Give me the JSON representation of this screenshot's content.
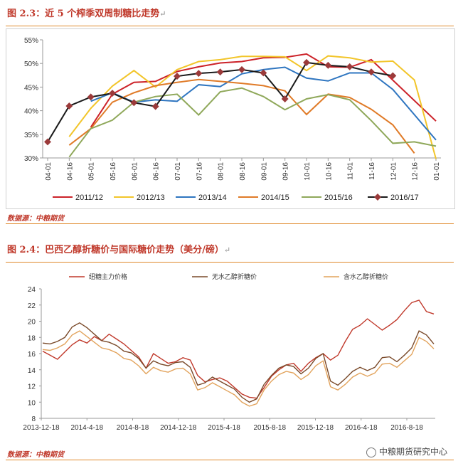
{
  "figure1": {
    "title": "图 2.3：近 5 个榨季双周制糖比走势",
    "source": "数据源：中粮期货"
  },
  "figure2": {
    "title": "图 2.4：巴西乙醇折糖价与国际糖价走势（美分/磅）",
    "source": "数据源：中粮期货"
  },
  "watermark": "中粮期货研究中心",
  "chart_data": [
    {
      "type": "line",
      "title": "近 5 个榨季双周制糖比走势",
      "categories": [
        "04-01",
        "04-16",
        "05-01",
        "05-16",
        "06-01",
        "06-16",
        "07-01",
        "07-16",
        "08-01",
        "08-16",
        "09-01",
        "09-16",
        "10-01",
        "10-16",
        "11-01",
        "11-16",
        "12-01",
        "12-16",
        "01-01"
      ],
      "yticks": [
        "30%",
        "35%",
        "40%",
        "45%",
        "50%",
        "55%"
      ],
      "ylim": [
        30,
        55
      ],
      "legend_position": "bottom",
      "series": [
        {
          "name": "2011/12",
          "color": "#cc2229",
          "values": [
            null,
            null,
            36.5,
            43.5,
            46.0,
            46.2,
            48.3,
            49.3,
            50.1,
            50.4,
            51.2,
            51.3,
            52.0,
            49.3,
            49.2,
            50.8,
            null,
            null,
            37.8
          ]
        },
        {
          "name": "2012/13",
          "color": "#f2c52a",
          "values": [
            null,
            34.5,
            40.5,
            45.2,
            48.5,
            45.0,
            48.7,
            50.4,
            50.8,
            51.5,
            51.5,
            51.4,
            48.5,
            51.6,
            51.2,
            50.3,
            50.5,
            46.5,
            29.8
          ]
        },
        {
          "name": "2013/14",
          "color": "#2e75c0",
          "values": [
            null,
            null,
            42.0,
            43.8,
            41.8,
            42.3,
            42.0,
            45.5,
            45.1,
            47.8,
            48.7,
            49.2,
            46.9,
            46.3,
            48.0,
            48.0,
            44.5,
            null,
            33.8
          ]
        },
        {
          "name": "2014/15",
          "color": "#e07b28",
          "values": [
            null,
            32.7,
            36.2,
            41.8,
            43.8,
            45.3,
            46.0,
            46.6,
            46.2,
            45.8,
            45.3,
            44.2,
            39.2,
            43.5,
            42.8,
            40.3,
            37.0,
            31.0,
            null
          ]
        },
        {
          "name": "2015/16",
          "color": "#8fa85a",
          "values": [
            null,
            30.2,
            36.2,
            38.0,
            41.8,
            43.0,
            43.5,
            39.1,
            44.0,
            44.8,
            43.0,
            40.2,
            42.5,
            43.4,
            42.3,
            37.9,
            33.1,
            33.4,
            32.5
          ]
        },
        {
          "name": "2016/17",
          "color": "#1a1a1a",
          "marker_color": "#9b3a3a",
          "values": [
            33.4,
            41.0,
            42.9,
            43.7,
            41.7,
            40.9,
            47.3,
            47.9,
            48.2,
            48.7,
            48.0,
            42.5,
            50.2,
            49.6,
            49.3,
            48.2,
            47.4,
            null,
            null
          ]
        }
      ]
    },
    {
      "type": "line",
      "title": "巴西乙醇折糖价与国际糖价走势（美分/磅）",
      "x_ticks": [
        "2013-12-18",
        "2014-4-18",
        "2014-8-18",
        "2014-12-18",
        "2015-4-18",
        "2015-8-18",
        "2015-12-18",
        "2016-4-18",
        "2016-8-18"
      ],
      "yticks": [
        "8",
        "10",
        "12",
        "14",
        "16",
        "18",
        "20",
        "22",
        "24"
      ],
      "ylim": [
        8,
        24
      ],
      "legend_position": "top",
      "series": [
        {
          "name": "纽糖主力价格",
          "color": "#c0392b",
          "values": [
            16.3,
            15.8,
            15.3,
            16.2,
            17.1,
            17.7,
            17.3,
            18.1,
            17.6,
            18.4,
            17.8,
            17.2,
            16.4,
            15.6,
            14.2,
            16.0,
            15.4,
            14.8,
            15.0,
            15.5,
            15.2,
            13.3,
            12.5,
            12.8,
            13.0,
            12.6,
            11.8,
            11.0,
            10.6,
            10.5,
            11.8,
            13.2,
            14.0,
            14.6,
            14.8,
            13.8,
            14.8,
            15.5,
            16.0,
            15.2,
            15.8,
            17.5,
            19.0,
            19.5,
            20.3,
            19.6,
            18.9,
            19.5,
            20.2,
            21.3,
            22.3,
            22.6,
            21.2,
            20.9
          ]
        },
        {
          "name": "无水乙醇折糖价",
          "color": "#7a4a2a",
          "values": [
            17.3,
            17.2,
            17.5,
            18.0,
            19.3,
            19.8,
            19.2,
            18.4,
            17.6,
            17.4,
            17.0,
            16.3,
            16.1,
            15.4,
            14.2,
            15.1,
            14.7,
            14.5,
            14.9,
            15.0,
            14.3,
            12.1,
            12.4,
            13.1,
            12.6,
            12.1,
            11.6,
            10.6,
            10.0,
            10.4,
            12.2,
            13.3,
            14.2,
            14.6,
            14.4,
            13.5,
            14.2,
            15.4,
            16.0,
            12.6,
            12.1,
            12.9,
            13.8,
            14.3,
            13.9,
            14.3,
            15.5,
            15.6,
            15.0,
            15.8,
            16.7,
            18.8,
            18.3,
            17.2
          ]
        },
        {
          "name": "含水乙醇折糖价",
          "color": "#e2a35c",
          "values": [
            16.5,
            16.4,
            16.7,
            17.2,
            18.3,
            18.8,
            18.1,
            17.4,
            16.7,
            16.5,
            16.1,
            15.4,
            15.2,
            14.5,
            13.5,
            14.3,
            13.9,
            13.7,
            14.1,
            14.2,
            13.5,
            11.5,
            11.8,
            12.4,
            11.9,
            11.4,
            10.9,
            10.0,
            9.5,
            9.8,
            11.5,
            12.6,
            13.4,
            13.8,
            13.6,
            12.8,
            13.4,
            14.5,
            15.1,
            11.9,
            11.5,
            12.2,
            13.1,
            13.6,
            13.2,
            13.6,
            14.7,
            14.8,
            14.3,
            15.1,
            15.9,
            18.0,
            17.5,
            16.6
          ]
        }
      ]
    }
  ]
}
